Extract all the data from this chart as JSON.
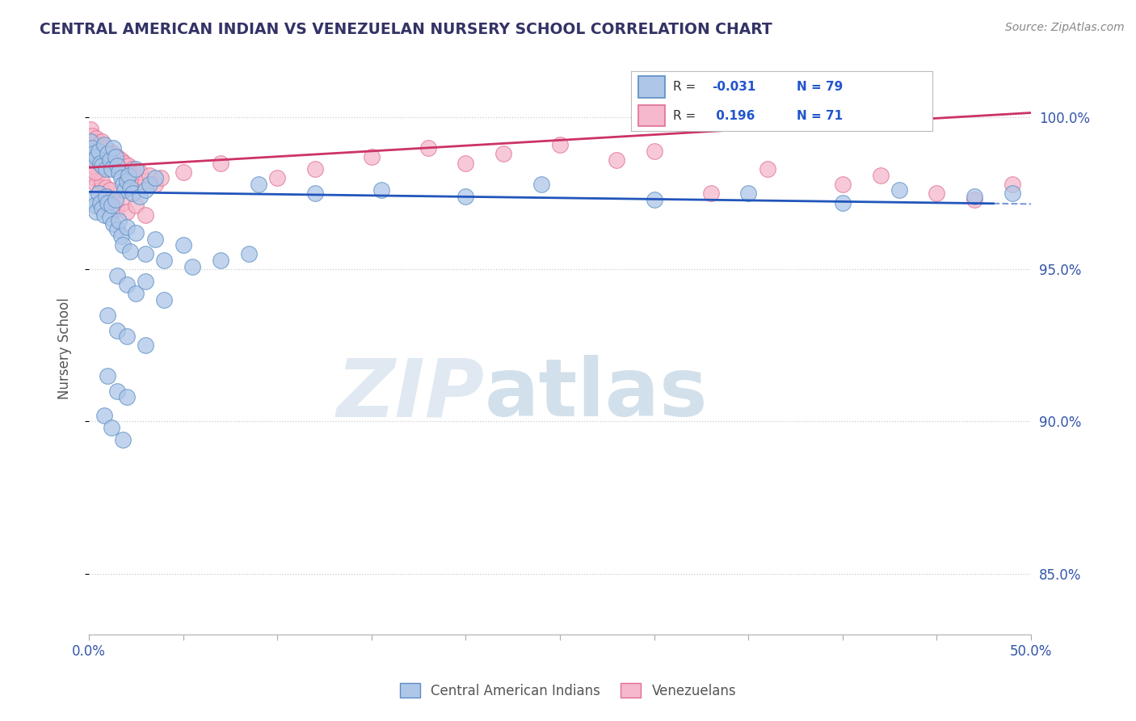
{
  "title": "CENTRAL AMERICAN INDIAN VS VENEZUELAN NURSERY SCHOOL CORRELATION CHART",
  "source": "Source: ZipAtlas.com",
  "ylabel": "Nursery School",
  "ymin": 83.0,
  "ymax": 101.8,
  "xmin": 0.0,
  "xmax": 50.0,
  "watermark_zip": "ZIP",
  "watermark_atlas": "atlas",
  "legend_blue_label": "Central American Indians",
  "legend_pink_label": "Venezuelans",
  "R_blue": -0.031,
  "N_blue": 79,
  "R_pink": 0.196,
  "N_pink": 71,
  "blue_color": "#aec6e8",
  "blue_edge_color": "#5b8ec4",
  "blue_line_color": "#2255bb",
  "pink_color": "#f5b8cc",
  "pink_edge_color": "#e07090",
  "pink_line_color": "#cc3366",
  "blue_line_y0": 97.55,
  "blue_line_y1": 97.15,
  "blue_solid_end_x": 48.0,
  "pink_line_y0": 98.35,
  "pink_line_y1": 100.15,
  "blue_scatter": [
    [
      0.1,
      99.2
    ],
    [
      0.15,
      99.0
    ],
    [
      0.2,
      98.8
    ],
    [
      0.3,
      98.6
    ],
    [
      0.4,
      98.7
    ],
    [
      0.5,
      98.9
    ],
    [
      0.6,
      98.5
    ],
    [
      0.7,
      98.4
    ],
    [
      0.8,
      99.1
    ],
    [
      0.9,
      98.3
    ],
    [
      1.0,
      98.8
    ],
    [
      1.1,
      98.6
    ],
    [
      1.2,
      98.3
    ],
    [
      1.3,
      99.0
    ],
    [
      1.4,
      98.7
    ],
    [
      1.5,
      98.4
    ],
    [
      1.6,
      98.2
    ],
    [
      1.7,
      98.0
    ],
    [
      1.8,
      97.8
    ],
    [
      1.9,
      97.6
    ],
    [
      2.0,
      97.9
    ],
    [
      2.1,
      98.1
    ],
    [
      2.2,
      97.7
    ],
    [
      2.3,
      97.5
    ],
    [
      2.5,
      98.3
    ],
    [
      2.7,
      97.4
    ],
    [
      3.0,
      97.6
    ],
    [
      3.2,
      97.8
    ],
    [
      3.5,
      98.0
    ],
    [
      0.2,
      97.3
    ],
    [
      0.3,
      97.1
    ],
    [
      0.4,
      96.9
    ],
    [
      0.5,
      97.5
    ],
    [
      0.6,
      97.2
    ],
    [
      0.7,
      97.0
    ],
    [
      0.8,
      96.8
    ],
    [
      0.9,
      97.4
    ],
    [
      1.0,
      97.2
    ],
    [
      1.1,
      96.7
    ],
    [
      1.2,
      97.1
    ],
    [
      1.3,
      96.5
    ],
    [
      1.4,
      97.3
    ],
    [
      1.5,
      96.3
    ],
    [
      1.6,
      96.6
    ],
    [
      1.7,
      96.1
    ],
    [
      1.8,
      95.8
    ],
    [
      2.0,
      96.4
    ],
    [
      2.2,
      95.6
    ],
    [
      2.5,
      96.2
    ],
    [
      3.0,
      95.5
    ],
    [
      3.5,
      96.0
    ],
    [
      4.0,
      95.3
    ],
    [
      5.0,
      95.8
    ],
    [
      1.5,
      94.8
    ],
    [
      2.0,
      94.5
    ],
    [
      2.5,
      94.2
    ],
    [
      3.0,
      94.6
    ],
    [
      4.0,
      94.0
    ],
    [
      5.5,
      95.1
    ],
    [
      7.0,
      95.3
    ],
    [
      8.5,
      95.5
    ],
    [
      1.0,
      93.5
    ],
    [
      1.5,
      93.0
    ],
    [
      2.0,
      92.8
    ],
    [
      3.0,
      92.5
    ],
    [
      1.0,
      91.5
    ],
    [
      1.5,
      91.0
    ],
    [
      2.0,
      90.8
    ],
    [
      0.8,
      90.2
    ],
    [
      1.2,
      89.8
    ],
    [
      1.8,
      89.4
    ],
    [
      9.0,
      97.8
    ],
    [
      12.0,
      97.5
    ],
    [
      15.5,
      97.6
    ],
    [
      20.0,
      97.4
    ],
    [
      24.0,
      97.8
    ],
    [
      30.0,
      97.3
    ],
    [
      35.0,
      97.5
    ],
    [
      40.0,
      97.2
    ],
    [
      43.0,
      97.6
    ],
    [
      47.0,
      97.4
    ],
    [
      49.0,
      97.5
    ]
  ],
  "pink_scatter": [
    [
      0.1,
      99.6
    ],
    [
      0.15,
      99.4
    ],
    [
      0.2,
      99.2
    ],
    [
      0.3,
      99.0
    ],
    [
      0.4,
      99.3
    ],
    [
      0.5,
      99.1
    ],
    [
      0.6,
      98.9
    ],
    [
      0.7,
      99.2
    ],
    [
      0.8,
      98.8
    ],
    [
      0.9,
      99.0
    ],
    [
      1.0,
      98.7
    ],
    [
      1.1,
      98.9
    ],
    [
      1.2,
      98.6
    ],
    [
      1.3,
      98.8
    ],
    [
      1.4,
      98.5
    ],
    [
      1.5,
      98.7
    ],
    [
      1.6,
      98.4
    ],
    [
      1.7,
      98.6
    ],
    [
      1.8,
      98.3
    ],
    [
      1.9,
      98.5
    ],
    [
      2.0,
      98.2
    ],
    [
      2.1,
      98.4
    ],
    [
      2.2,
      98.1
    ],
    [
      2.3,
      98.3
    ],
    [
      2.5,
      98.0
    ],
    [
      2.7,
      98.2
    ],
    [
      3.0,
      97.9
    ],
    [
      3.2,
      98.1
    ],
    [
      3.5,
      97.8
    ],
    [
      3.8,
      98.0
    ],
    [
      0.3,
      98.0
    ],
    [
      0.4,
      97.8
    ],
    [
      0.5,
      98.2
    ],
    [
      0.6,
      97.6
    ],
    [
      0.7,
      97.9
    ],
    [
      0.8,
      97.5
    ],
    [
      0.9,
      97.7
    ],
    [
      1.0,
      97.4
    ],
    [
      1.1,
      97.6
    ],
    [
      1.2,
      97.3
    ],
    [
      1.5,
      97.0
    ],
    [
      1.8,
      97.2
    ],
    [
      2.0,
      96.9
    ],
    [
      2.5,
      97.1
    ],
    [
      3.0,
      96.8
    ],
    [
      0.2,
      98.6
    ],
    [
      0.25,
      98.4
    ],
    [
      0.35,
      98.2
    ],
    [
      5.0,
      98.2
    ],
    [
      7.0,
      98.5
    ],
    [
      10.0,
      98.0
    ],
    [
      12.0,
      98.3
    ],
    [
      15.0,
      98.7
    ],
    [
      18.0,
      99.0
    ],
    [
      20.0,
      98.5
    ],
    [
      22.0,
      98.8
    ],
    [
      25.0,
      99.1
    ],
    [
      28.0,
      98.6
    ],
    [
      30.0,
      98.9
    ],
    [
      33.0,
      97.5
    ],
    [
      36.0,
      98.3
    ],
    [
      40.0,
      97.8
    ],
    [
      42.0,
      98.1
    ],
    [
      45.0,
      97.5
    ],
    [
      47.0,
      97.3
    ],
    [
      49.0,
      97.8
    ]
  ],
  "background_color": "#ffffff",
  "grid_color": "#cccccc"
}
